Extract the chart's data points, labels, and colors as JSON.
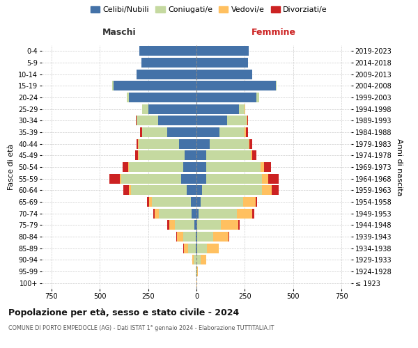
{
  "age_groups": [
    "100+",
    "95-99",
    "90-94",
    "85-89",
    "80-84",
    "75-79",
    "70-74",
    "65-69",
    "60-64",
    "55-59",
    "50-54",
    "45-49",
    "40-44",
    "35-39",
    "30-34",
    "25-29",
    "20-24",
    "15-19",
    "10-14",
    "5-9",
    "0-4"
  ],
  "birth_years": [
    "≤ 1923",
    "1924-1928",
    "1929-1933",
    "1934-1938",
    "1939-1943",
    "1944-1948",
    "1949-1953",
    "1954-1958",
    "1959-1963",
    "1964-1968",
    "1969-1973",
    "1974-1978",
    "1979-1983",
    "1984-1988",
    "1989-1993",
    "1994-1998",
    "1999-2003",
    "2004-2008",
    "2009-2013",
    "2014-2018",
    "2019-2023"
  ],
  "males": {
    "celibe": [
      0,
      0,
      0,
      5,
      5,
      10,
      25,
      30,
      50,
      80,
      70,
      60,
      90,
      150,
      200,
      250,
      350,
      430,
      310,
      285,
      295
    ],
    "coniugato": [
      0,
      2,
      15,
      40,
      65,
      100,
      170,
      200,
      290,
      310,
      280,
      240,
      210,
      130,
      110,
      30,
      10,
      5,
      0,
      0,
      0
    ],
    "vedovo": [
      0,
      2,
      8,
      20,
      30,
      30,
      20,
      15,
      10,
      5,
      2,
      2,
      1,
      1,
      0,
      0,
      0,
      0,
      0,
      0,
      0
    ],
    "divorziato": [
      0,
      0,
      0,
      2,
      5,
      10,
      8,
      10,
      30,
      55,
      30,
      15,
      10,
      10,
      5,
      2,
      1,
      0,
      0,
      0,
      0
    ]
  },
  "females": {
    "nubile": [
      0,
      0,
      0,
      5,
      5,
      5,
      10,
      20,
      30,
      50,
      50,
      50,
      70,
      120,
      160,
      220,
      310,
      410,
      290,
      265,
      270
    ],
    "coniugata": [
      0,
      3,
      20,
      50,
      80,
      120,
      200,
      220,
      310,
      290,
      280,
      230,
      200,
      130,
      100,
      30,
      15,
      5,
      0,
      0,
      0
    ],
    "vedova": [
      2,
      5,
      30,
      60,
      80,
      90,
      80,
      65,
      50,
      30,
      20,
      10,
      5,
      5,
      2,
      1,
      0,
      0,
      0,
      0,
      0
    ],
    "divorziata": [
      0,
      0,
      0,
      2,
      5,
      8,
      8,
      10,
      35,
      55,
      35,
      20,
      15,
      10,
      5,
      2,
      1,
      0,
      0,
      0,
      0
    ]
  },
  "colors": {
    "celibe": "#4472a8",
    "coniugato": "#c5d9a0",
    "vedovo": "#ffc060",
    "divorziato": "#cc2222"
  },
  "xlim": 800,
  "title_main": "Popolazione per età, sesso e stato civile - 2024",
  "title_sub": "COMUNE DI PORTO EMPEDOCLE (AG) - Dati ISTAT 1° gennaio 2024 - Elaborazione TUTTITALIA.IT",
  "ylabel_left": "Fasce di età",
  "ylabel_right": "Anni di nascita",
  "label_maschi": "Maschi",
  "label_femmine": "Femmine",
  "legend_labels": [
    "Celibi/Nubili",
    "Coniugati/e",
    "Vedovi/e",
    "Divorziati/e"
  ],
  "background_color": "#ffffff",
  "grid_color": "#cccccc"
}
